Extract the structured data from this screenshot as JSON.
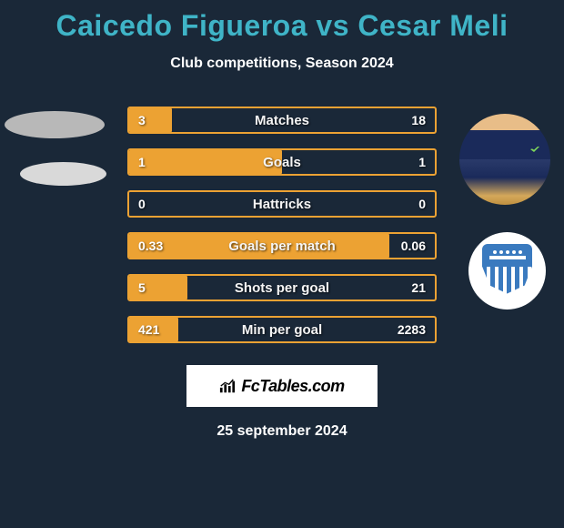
{
  "title_color": "#3fb4c7",
  "header": {
    "player1": "Caicedo Figueroa",
    "player2": "Cesar Meli",
    "vs": "vs",
    "subtitle": "Club competitions, Season 2024"
  },
  "chart": {
    "type": "bar",
    "border_color": "#eca233",
    "fill_color": "#eca233",
    "text_color": "#ffffff",
    "rows": [
      {
        "label": "Matches",
        "left": "3",
        "right": "18",
        "fill_pct": 14
      },
      {
        "label": "Goals",
        "left": "1",
        "right": "1",
        "fill_pct": 50
      },
      {
        "label": "Hattricks",
        "left": "0",
        "right": "0",
        "fill_pct": 0
      },
      {
        "label": "Goals per match",
        "left": "0.33",
        "right": "0.06",
        "fill_pct": 85
      },
      {
        "label": "Shots per goal",
        "left": "5",
        "right": "21",
        "fill_pct": 19
      },
      {
        "label": "Min per goal",
        "left": "421",
        "right": "2283",
        "fill_pct": 16
      }
    ]
  },
  "brand": {
    "text": "FcTables.com"
  },
  "footer": {
    "date": "25 september 2024"
  }
}
